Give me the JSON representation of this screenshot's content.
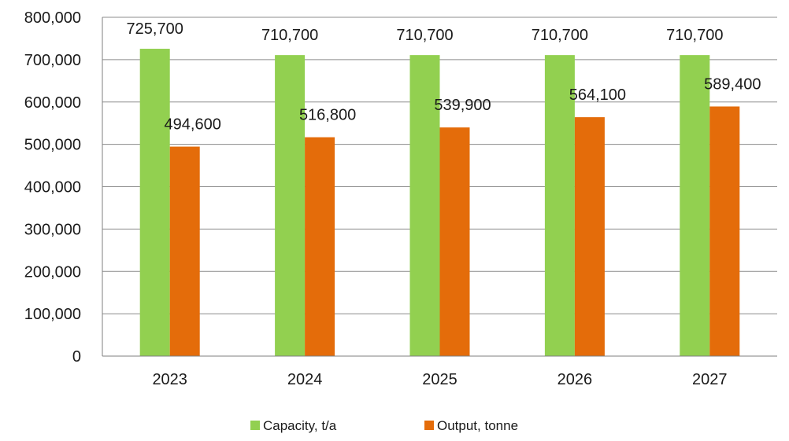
{
  "chart_data": {
    "type": "bar",
    "categories": [
      "2023",
      "2024",
      "2025",
      "2026",
      "2027"
    ],
    "series": [
      {
        "name": "Capacity, t/a",
        "values": [
          725700,
          710700,
          710700,
          710700,
          710700
        ],
        "labels": [
          "725,700",
          "710,700",
          "710,700",
          "710,700",
          "710,700"
        ],
        "color": "#92D050"
      },
      {
        "name": "Output, tonne",
        "values": [
          494600,
          516800,
          539900,
          564100,
          589400
        ],
        "labels": [
          "494,600",
          "516,800",
          "539,900",
          "564,100",
          "589,400"
        ],
        "color": "#E46C0A"
      }
    ],
    "ylim": [
      0,
      800000
    ],
    "yticks": [
      0,
      100000,
      200000,
      300000,
      400000,
      500000,
      600000,
      700000,
      800000
    ],
    "ytick_labels": [
      "0",
      "100,000",
      "200,000",
      "300,000",
      "400,000",
      "500,000",
      "600,000",
      "700,000",
      "800,000"
    ],
    "grid": true,
    "legend_position": "bottom",
    "title": "",
    "xlabel": "",
    "ylabel": ""
  }
}
